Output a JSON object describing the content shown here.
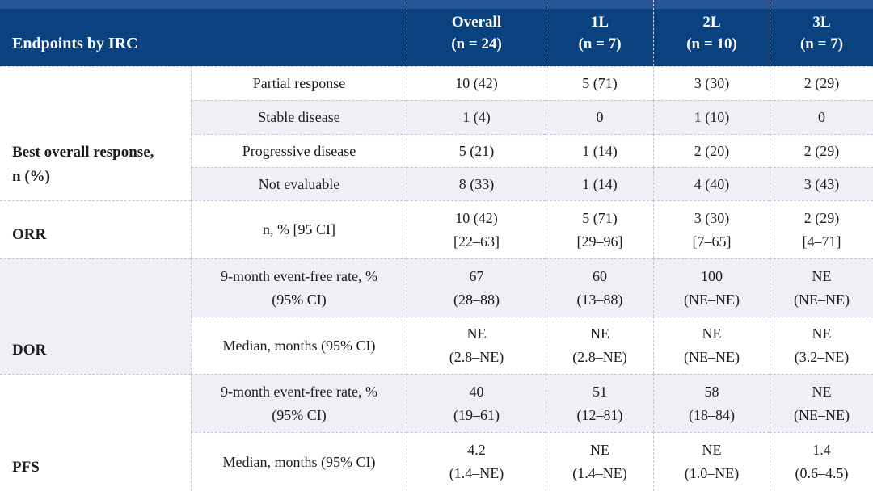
{
  "colors": {
    "header_bg": "#0a4280",
    "header_bg_top": "#265694",
    "header_text": "#ffffff",
    "row_shade": "#eff0f5",
    "border": "#c6c8cc",
    "body_text": "#1c1c1c"
  },
  "chart_data": {
    "type": "table",
    "title": "Endpoints by IRC",
    "columns": [
      "Overall (n = 24)",
      "1L (n = 7)",
      "2L (n = 10)",
      "3L (n = 7)"
    ],
    "notes": "Clinical efficacy endpoints table: best overall response, ORR, DOR, PFS by line of therapy"
  },
  "table": {
    "header": {
      "title": "Endpoints by IRC",
      "columns": [
        {
          "line1": "Overall",
          "line2": "(n = 24)"
        },
        {
          "line1": "1L",
          "line2": "(n = 7)"
        },
        {
          "line1": "2L",
          "line2": "(n = 10)"
        },
        {
          "line1": "3L",
          "line2": "(n = 7)"
        }
      ]
    },
    "groups": [
      {
        "label": "Best overall response, n (%)",
        "label_lines": [
          "Best overall response,",
          "n (%)"
        ],
        "label_shaded": false,
        "rows": [
          {
            "label": [
              "Partial response"
            ],
            "shaded": false,
            "values": [
              [
                "10 (42)"
              ],
              [
                "5 (71)"
              ],
              [
                "3 (30)"
              ],
              [
                "2 (29)"
              ]
            ]
          },
          {
            "label": [
              "Stable disease"
            ],
            "shaded": true,
            "values": [
              [
                "1 (4)"
              ],
              [
                "0"
              ],
              [
                "1 (10)"
              ],
              [
                "0"
              ]
            ]
          },
          {
            "label": [
              "Progressive disease"
            ],
            "shaded": false,
            "values": [
              [
                "5 (21)"
              ],
              [
                "1 (14)"
              ],
              [
                "2 (20)"
              ],
              [
                "2 (29)"
              ]
            ]
          },
          {
            "label": [
              "Not evaluable"
            ],
            "shaded": true,
            "values": [
              [
                "8 (33)"
              ],
              [
                "1 (14)"
              ],
              [
                "4 (40)"
              ],
              [
                "3 (43)"
              ]
            ]
          }
        ]
      },
      {
        "label": "ORR",
        "label_lines": [
          "ORR"
        ],
        "label_shaded": false,
        "rows": [
          {
            "label": [
              "n, % [95 CI]"
            ],
            "shaded": false,
            "values": [
              [
                "10 (42)",
                "[22–63]"
              ],
              [
                "5 (71)",
                "[29–96]"
              ],
              [
                "3 (30)",
                "[7–65]"
              ],
              [
                "2 (29)",
                "[4–71]"
              ]
            ]
          }
        ]
      },
      {
        "label": "DOR",
        "label_lines": [
          "DOR"
        ],
        "label_shaded": true,
        "rows": [
          {
            "label": [
              "9-month event-free rate, %",
              "(95% CI)"
            ],
            "shaded": true,
            "values": [
              [
                "67",
                "(28–88)"
              ],
              [
                "60",
                "(13–88)"
              ],
              [
                "100",
                "(NE–NE)"
              ],
              [
                "NE",
                "(NE–NE)"
              ]
            ]
          },
          {
            "label": [
              "Median, months (95% CI)"
            ],
            "shaded": false,
            "values": [
              [
                "NE",
                "(2.8–NE)"
              ],
              [
                "NE",
                "(2.8–NE)"
              ],
              [
                "NE",
                "(NE–NE)"
              ],
              [
                "NE",
                "(3.2–NE)"
              ]
            ]
          }
        ]
      },
      {
        "label": "PFS",
        "label_lines": [
          "PFS"
        ],
        "label_shaded": false,
        "rows": [
          {
            "label": [
              "9-month event-free rate, %",
              "(95% CI)"
            ],
            "shaded": true,
            "values": [
              [
                "40",
                "(19–61)"
              ],
              [
                "51",
                "(12–81)"
              ],
              [
                "58",
                "(18–84)"
              ],
              [
                "NE",
                "(NE–NE)"
              ]
            ]
          },
          {
            "label": [
              "Median, months (95% CI)"
            ],
            "shaded": false,
            "values": [
              [
                "4.2",
                "(1.4–NE)"
              ],
              [
                "NE",
                "(1.4–NE)"
              ],
              [
                "NE",
                "(1.0–NE)"
              ],
              [
                "1.4",
                "(0.6–4.5)"
              ]
            ]
          }
        ]
      }
    ]
  }
}
